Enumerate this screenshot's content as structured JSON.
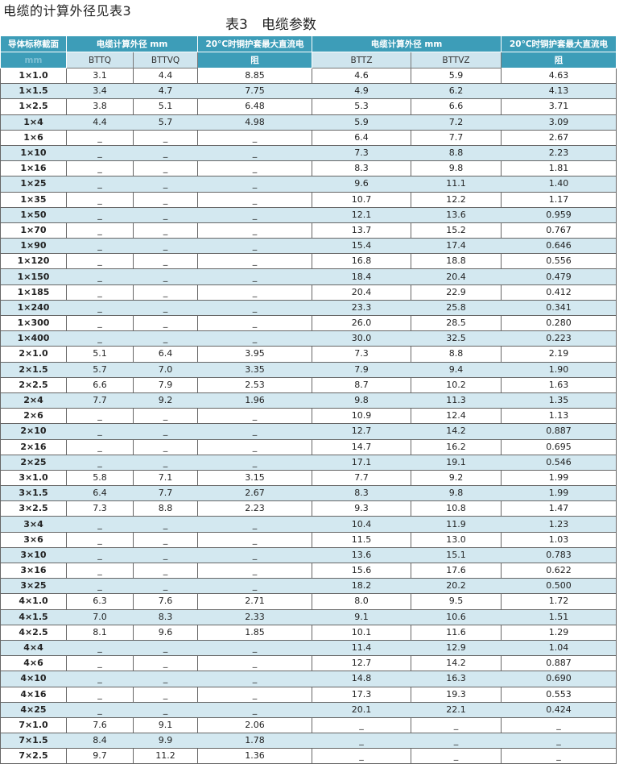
{
  "intro": "电缆的计算外径见表3",
  "caption": "表3　电缆参数",
  "header": {
    "col_spec": "导体标称截面",
    "col_spec_unit": "mm",
    "group1": "电缆计算外径 mm",
    "res1_line1": "20°C时铜护套最大直流电",
    "res1_line2": "阻",
    "group2": "电缆计算外径 mm",
    "res2_line1": "20°C时铜护套最大直流电",
    "res2_line2": "阻",
    "bttq": "BTTQ",
    "bttvq": "BTTVQ",
    "bttz": "BTTZ",
    "bttvz": "BTTVZ"
  },
  "colors": {
    "header": "#3d9db8",
    "alt_row": "#d3e8f0"
  },
  "rows": [
    [
      "1×1.0",
      "3.1",
      "4.4",
      "8.85",
      "4.6",
      "5.9",
      "4.63"
    ],
    [
      "1×1.5",
      "3.4",
      "4.7",
      "7.75",
      "4.9",
      "6.2",
      "4.13"
    ],
    [
      "1×2.5",
      "3.8",
      "5.1",
      "6.48",
      "5.3",
      "6.6",
      "3.71"
    ],
    [
      "1×4",
      "4.4",
      "5.7",
      "4.98",
      "5.9",
      "7.2",
      "3.09"
    ],
    [
      "1×6",
      "_",
      "_",
      "_",
      "6.4",
      "7.7",
      "2.67"
    ],
    [
      "1×10",
      "_",
      "_",
      "_",
      "7.3",
      "8.8",
      "2.23"
    ],
    [
      "1×16",
      "_",
      "_",
      "_",
      "8.3",
      "9.8",
      "1.81"
    ],
    [
      "1×25",
      "_",
      "_",
      "_",
      "9.6",
      "11.1",
      "1.40"
    ],
    [
      "1×35",
      "_",
      "_",
      "_",
      "10.7",
      "12.2",
      "1.17"
    ],
    [
      "1×50",
      "_",
      "_",
      "_",
      "12.1",
      "13.6",
      "0.959"
    ],
    [
      "1×70",
      "_",
      "_",
      "_",
      "13.7",
      "15.2",
      "0.767"
    ],
    [
      "1×90",
      "_",
      "_",
      "_",
      "15.4",
      "17.4",
      "0.646"
    ],
    [
      "1×120",
      "_",
      "_",
      "_",
      "16.8",
      "18.8",
      "0.556"
    ],
    [
      "1×150",
      "_",
      "_",
      "_",
      "18.4",
      "20.4",
      "0.479"
    ],
    [
      "1×185",
      "_",
      "_",
      "_",
      "20.4",
      "22.9",
      "0.412"
    ],
    [
      "1×240",
      "_",
      "_",
      "_",
      "23.3",
      "25.8",
      "0.341"
    ],
    [
      "1×300",
      "_",
      "_",
      "_",
      "26.0",
      "28.5",
      "0.280"
    ],
    [
      "1×400",
      "_",
      "_",
      "_",
      "30.0",
      "32.5",
      "0.223"
    ],
    [
      "2×1.0",
      "5.1",
      "6.4",
      "3.95",
      "7.3",
      "8.8",
      "2.19"
    ],
    [
      "2×1.5",
      "5.7",
      "7.0",
      "3.35",
      "7.9",
      "9.4",
      "1.90"
    ],
    [
      "2×2.5",
      "6.6",
      "7.9",
      "2.53",
      "8.7",
      "10.2",
      "1.63"
    ],
    [
      "2×4",
      "7.7",
      "9.2",
      "1.96",
      "9.8",
      "11.3",
      "1.35"
    ],
    [
      "2×6",
      "_",
      "_",
      "_",
      "10.9",
      "12.4",
      "1.13"
    ],
    [
      "2×10",
      "_",
      "_",
      "_",
      "12.7",
      "14.2",
      "0.887"
    ],
    [
      "2×16",
      "_",
      "_",
      "_",
      "14.7",
      "16.2",
      "0.695"
    ],
    [
      "2×25",
      "_",
      "_",
      "_",
      "17.1",
      "19.1",
      "0.546"
    ],
    [
      "3×1.0",
      "5.8",
      "7.1",
      "3.15",
      "7.7",
      "9.2",
      "1.99"
    ],
    [
      "3×1.5",
      "6.4",
      "7.7",
      "2.67",
      "8.3",
      "9.8",
      "1.99"
    ],
    [
      "3×2.5",
      "7.3",
      "8.8",
      "2.23",
      "9.3",
      "10.8",
      "1.47"
    ],
    [
      "3×4",
      "_",
      "_",
      "_",
      "10.4",
      "11.9",
      "1.23"
    ],
    [
      "3×6",
      "_",
      "_",
      "_",
      "11.5",
      "13.0",
      "1.03"
    ],
    [
      "3×10",
      "_",
      "_",
      "_",
      "13.6",
      "15.1",
      "0.783"
    ],
    [
      "3×16",
      "_",
      "_",
      "_",
      "15.6",
      "17.6",
      "0.622"
    ],
    [
      "3×25",
      "_",
      "_",
      "_",
      "18.2",
      "20.2",
      "0.500"
    ],
    [
      "4×1.0",
      "6.3",
      "7.6",
      "2.71",
      "8.0",
      "9.5",
      "1.72"
    ],
    [
      "4×1.5",
      "7.0",
      "8.3",
      "2.33",
      "9.1",
      "10.6",
      "1.51"
    ],
    [
      "4×2.5",
      "8.1",
      "9.6",
      "1.85",
      "10.1",
      "11.6",
      "1.29"
    ],
    [
      "4×4",
      "_",
      "_",
      "_",
      "11.4",
      "12.9",
      "1.04"
    ],
    [
      "4×6",
      "_",
      "_",
      "_",
      "12.7",
      "14.2",
      "0.887"
    ],
    [
      "4×10",
      "_",
      "_",
      "_",
      "14.8",
      "16.3",
      "0.690"
    ],
    [
      "4×16",
      "_",
      "_",
      "_",
      "17.3",
      "19.3",
      "0.553"
    ],
    [
      "4×25",
      "_",
      "_",
      "_",
      "20.1",
      "22.1",
      "0.424"
    ],
    [
      "7×1.0",
      "7.6",
      "9.1",
      "2.06",
      "_",
      "_",
      "_"
    ],
    [
      "7×1.5",
      "8.4",
      "9.9",
      "1.78",
      "_",
      "_",
      "_"
    ],
    [
      "7×2.5",
      "9.7",
      "11.2",
      "1.36",
      "_",
      "_",
      "_"
    ]
  ]
}
